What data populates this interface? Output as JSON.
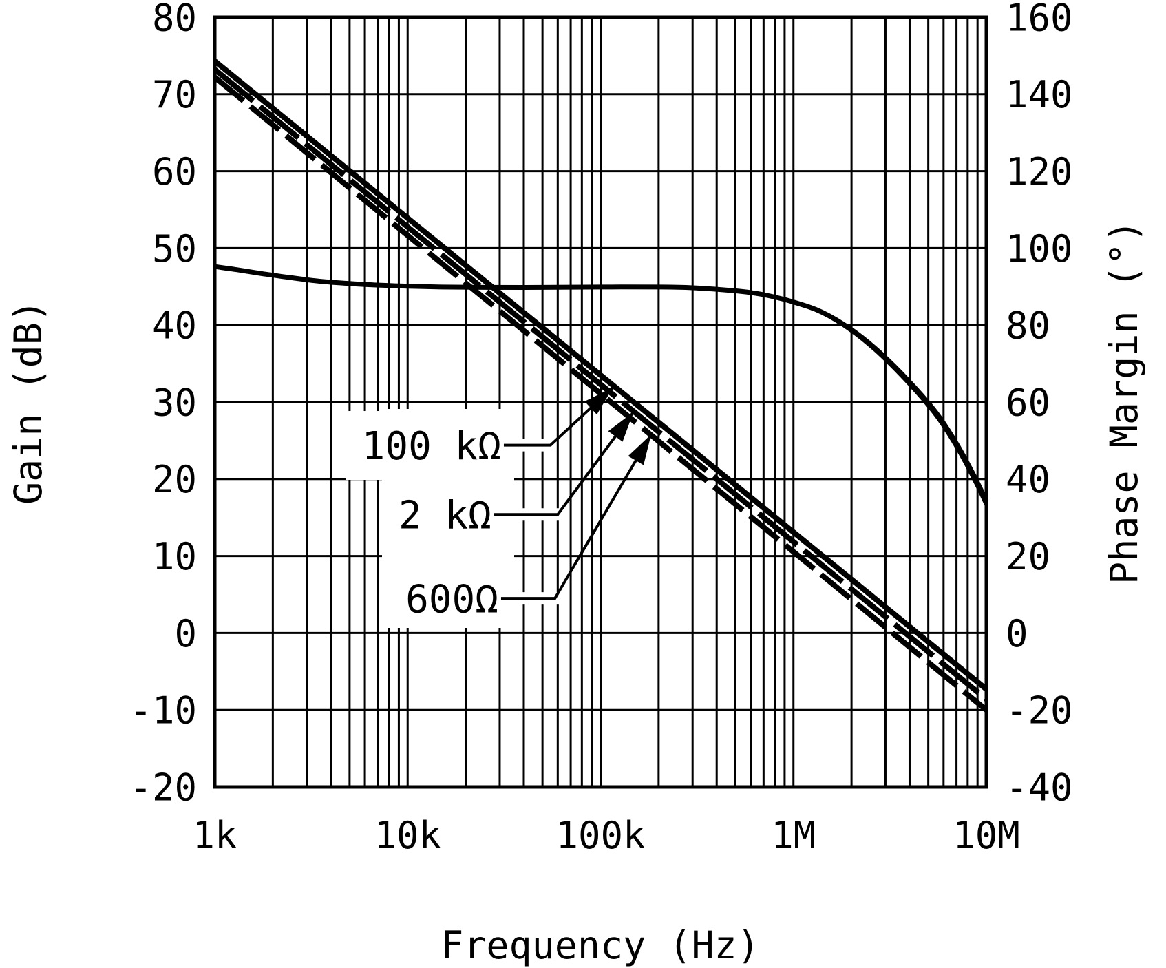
{
  "figure": {
    "background_color": "#ffffff",
    "ink_color": "#000000"
  },
  "chart_data": {
    "type": "line",
    "title": "",
    "xlabel": "Frequency (Hz)",
    "ylabel_left": "Gain (dB)",
    "ylabel_right": "Phase Margin (°)",
    "x_scale": "log",
    "x_range_hz": [
      1000,
      10000000
    ],
    "x_ticks": [
      {
        "hz": 1000,
        "label": "1k"
      },
      {
        "hz": 10000,
        "label": "10k"
      },
      {
        "hz": 100000,
        "label": "100k"
      },
      {
        "hz": 1000000,
        "label": "1M"
      },
      {
        "hz": 10000000,
        "label": "10M"
      }
    ],
    "x_minor_multiples": [
      2,
      3,
      4,
      5,
      6,
      7,
      8,
      9
    ],
    "y_left_range": [
      -20,
      80
    ],
    "y_left_ticks": [
      {
        "v": 80,
        "label": "80"
      },
      {
        "v": 70,
        "label": "70"
      },
      {
        "v": 60,
        "label": "60"
      },
      {
        "v": 50,
        "label": "50"
      },
      {
        "v": 40,
        "label": "40"
      },
      {
        "v": 30,
        "label": "30"
      },
      {
        "v": 20,
        "label": "20"
      },
      {
        "v": 10,
        "label": "10"
      },
      {
        "v": 0,
        "label": "0"
      },
      {
        "v": -10,
        "label": "-10"
      },
      {
        "v": -20,
        "label": "-20"
      }
    ],
    "y_right_range": [
      -40,
      160
    ],
    "y_right_ticks": [
      {
        "v": 160,
        "label": "160"
      },
      {
        "v": 140,
        "label": "140"
      },
      {
        "v": 120,
        "label": "120"
      },
      {
        "v": 100,
        "label": "100"
      },
      {
        "v": 80,
        "label": "80"
      },
      {
        "v": 60,
        "label": "60"
      },
      {
        "v": 40,
        "label": "40"
      },
      {
        "v": 20,
        "label": "20"
      },
      {
        "v": 0,
        "label": "0"
      },
      {
        "v": -20,
        "label": "-20"
      },
      {
        "v": -40,
        "label": "-40"
      }
    ],
    "grid": "full log-log style grid, black on white",
    "gain_series": [
      {
        "name": "100 kΩ",
        "axis": "left",
        "line_style": "solid",
        "points_hz_db": [
          [
            1000,
            74.3
          ],
          [
            10000000,
            -7.3
          ]
        ]
      },
      {
        "name": "2 kΩ",
        "axis": "left",
        "line_style": "long-dash",
        "points_hz_db": [
          [
            1000,
            73.2
          ],
          [
            10000000,
            -8.6
          ]
        ]
      },
      {
        "name": "600Ω",
        "axis": "left",
        "line_style": "dash",
        "points_hz_db": [
          [
            1000,
            72.2
          ],
          [
            10000000,
            -10.0
          ]
        ]
      }
    ],
    "phase_series": {
      "name": "Phase Margin",
      "axis": "right",
      "points_hz_deg": [
        [
          1000,
          95.2
        ],
        [
          1300,
          94.4
        ],
        [
          1800,
          93.3
        ],
        [
          2500,
          92.3
        ],
        [
          3500,
          91.4
        ],
        [
          5000,
          90.8
        ],
        [
          7000,
          90.4
        ],
        [
          10000,
          90.1
        ],
        [
          15000,
          89.9
        ],
        [
          25000,
          89.8
        ],
        [
          50000,
          89.8
        ],
        [
          100000,
          89.9
        ],
        [
          200000,
          89.9
        ],
        [
          300000,
          89.7
        ],
        [
          500000,
          88.9
        ],
        [
          700000,
          87.9
        ],
        [
          1000000,
          86.0
        ],
        [
          1400000,
          83.4
        ],
        [
          2000000,
          78.8
        ],
        [
          2800000,
          72.9
        ],
        [
          4000000,
          65.2
        ],
        [
          5500000,
          57.2
        ],
        [
          7000000,
          49.2
        ],
        [
          8500000,
          41.5
        ],
        [
          10000000,
          34.3
        ]
      ]
    },
    "annotations": [
      {
        "text": "100 kΩ",
        "text_hz": 31000,
        "text_db": 24.4,
        "elbow_hz": 55000,
        "tip_hz": 116000,
        "tip_db": 31.9
      },
      {
        "text": "2 kΩ",
        "text_hz": 27600,
        "text_db": 15.4,
        "elbow_hz": 60000,
        "tip_hz": 148000,
        "tip_db": 28.7
      },
      {
        "text": "600Ω",
        "text_hz": 30000,
        "text_db": 4.5,
        "elbow_hz": 58000,
        "tip_hz": 183000,
        "tip_db": 25.8
      }
    ]
  }
}
